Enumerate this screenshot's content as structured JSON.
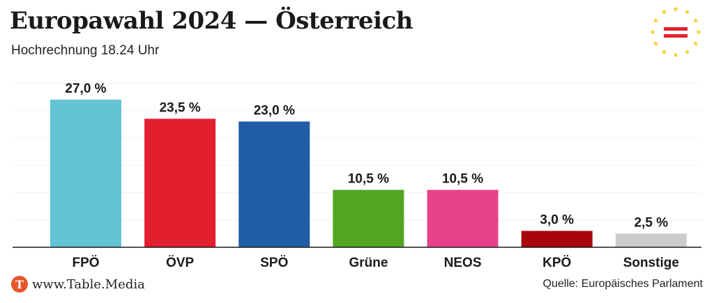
{
  "header": {
    "title": "Europawahl 2024 — Österreich",
    "subtitle": "Hochrechnung 18.24 Uhr"
  },
  "emblem": {
    "icon": "eu-stars-austria-flag-icon",
    "colors": {
      "stars": "#f2d13a",
      "flag_red": "#e4242e",
      "flag_white": "#ffffff"
    }
  },
  "chart_data": {
    "type": "bar",
    "categories": [
      "FPÖ",
      "ÖVP",
      "SPÖ",
      "Grüne",
      "NEOS",
      "KPÖ",
      "Sonstige"
    ],
    "values": [
      27.0,
      23.5,
      23.0,
      10.5,
      10.5,
      3.0,
      2.5
    ],
    "value_labels": [
      "27,0 %",
      "23,5 %",
      "23,0 %",
      "10,5 %",
      "10,5 %",
      "3,0 %",
      "2,5 %"
    ],
    "colors": [
      "#63c4d4",
      "#e31e2f",
      "#215ca6",
      "#52a520",
      "#e8428a",
      "#a8070d",
      "#cccccc"
    ],
    "ylim": [
      0,
      30
    ],
    "grid": true
  },
  "footer": {
    "logo_letter": "T",
    "site": "www.Table.Media",
    "source": "Quelle: Europäisches Parlament"
  }
}
